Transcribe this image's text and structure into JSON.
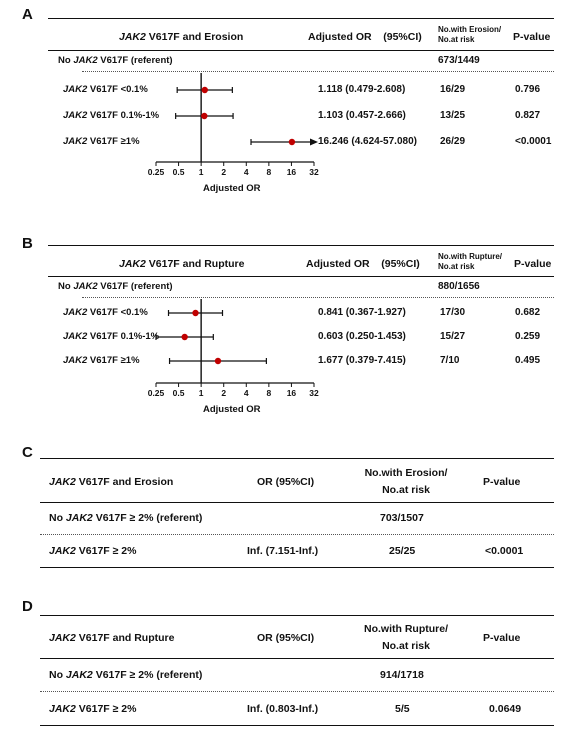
{
  "chart_data": [
    {
      "type": "forest",
      "panel": "A",
      "title_prefix": "JAK2",
      "title_suffix": " V617F and Erosion",
      "col_or": "Adjusted OR    (95%CI)",
      "col_n": [
        "No.with Erosion/",
        "No.at risk"
      ],
      "col_p": "P-value",
      "referent": {
        "prefix": "No ",
        "gene": "JAK2",
        "suffix": " V617F (referent)",
        "n": "673/1449"
      },
      "rows": [
        {
          "gene": "JAK2",
          "label": " V617F <0.1%",
          "or": 1.118,
          "lo": 0.479,
          "hi": 2.608,
          "or_text": "1.118 (0.479-2.608)",
          "n": "16/29",
          "p": "0.796"
        },
        {
          "gene": "JAK2",
          "label": " V617F 0.1%-1%",
          "or": 1.103,
          "lo": 0.457,
          "hi": 2.666,
          "or_text": "1.103 (0.457-2.666)",
          "n": "13/25",
          "p": "0.827"
        },
        {
          "gene": "JAK2",
          "label": " V617F ≥1%",
          "or": 16.246,
          "lo": 4.624,
          "hi": 57.08,
          "or_text": "16.246 (4.624-57.080)",
          "n": "26/29",
          "p": "<0.0001"
        }
      ],
      "x_scale": "log2",
      "xlim": [
        0.25,
        32
      ],
      "xticks": [
        "0.25",
        "0.5",
        "1",
        "2",
        "4",
        "8",
        "16",
        "32"
      ],
      "xlabel": "Adjusted OR"
    },
    {
      "type": "forest",
      "panel": "B",
      "title_prefix": "JAK2",
      "title_suffix": " V617F and Rupture",
      "col_or": "Adjusted OR    (95%CI)",
      "col_n": [
        "No.with Rupture/",
        "No.at risk"
      ],
      "col_p": "P-value",
      "referent": {
        "prefix": "No ",
        "gene": "JAK2",
        "suffix": " V617F (referent)",
        "n": "880/1656"
      },
      "rows": [
        {
          "gene": "JAK2",
          "label": " V617F <0.1%",
          "or": 0.841,
          "lo": 0.367,
          "hi": 1.927,
          "or_text": "0.841 (0.367-1.927)",
          "n": "17/30",
          "p": "0.682"
        },
        {
          "gene": "JAK2",
          "label": " V617F 0.1%-1%",
          "or": 0.603,
          "lo": 0.25,
          "hi": 1.453,
          "or_text": "0.603 (0.250-1.453)",
          "n": "15/27",
          "p": "0.259"
        },
        {
          "gene": "JAK2",
          "label": " V617F ≥1%",
          "or": 1.677,
          "lo": 0.379,
          "hi": 7.415,
          "or_text": "1.677 (0.379-7.415)",
          "n": "7/10",
          "p": "0.495"
        }
      ],
      "x_scale": "log2",
      "xlim": [
        0.25,
        32
      ],
      "xticks": [
        "0.25",
        "0.5",
        "1",
        "2",
        "4",
        "8",
        "16",
        "32"
      ],
      "xlabel": "Adjusted OR"
    },
    {
      "type": "table",
      "panel": "C",
      "header": {
        "title_gene": "JAK2",
        "title_suffix": " V617F and Erosion",
        "or": "OR (95%CI)",
        "n": [
          "No.with Erosion/",
          "No.at risk"
        ],
        "p": "P-value"
      },
      "referent": {
        "prefix": "No ",
        "gene": "JAK2",
        "suffix": " V617F ≥ 2% (referent)",
        "n": "703/1507"
      },
      "row": {
        "gene": "JAK2",
        "label": " V617F ≥ 2%",
        "or": "Inf. (7.151-Inf.)",
        "n": "25/25",
        "p": "<0.0001"
      }
    },
    {
      "type": "table",
      "panel": "D",
      "header": {
        "title_gene": "JAK2",
        "title_suffix": " V617F and Rupture",
        "or": "OR (95%CI)",
        "n": [
          "No.with Rupture/",
          "No.at risk"
        ],
        "p": "P-value"
      },
      "referent": {
        "prefix": "No ",
        "gene": "JAK2",
        "suffix": " V617F ≥ 2% (referent)",
        "n": "914/1718"
      },
      "row": {
        "gene": "JAK2",
        "label": " V617F ≥ 2%",
        "or": "Inf. (0.803-Inf.)",
        "n": "5/5",
        "p": "0.0649"
      }
    }
  ],
  "colors": {
    "point": "#c00000",
    "line": "#111111"
  }
}
